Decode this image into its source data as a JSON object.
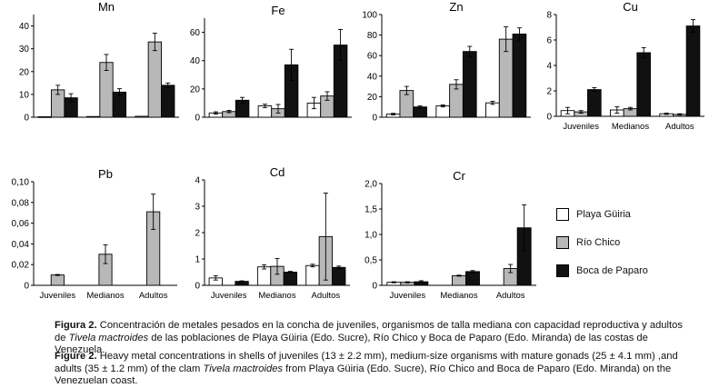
{
  "colors": {
    "playa_guiria": "#ffffff",
    "rio_chico": "#b8b8b8",
    "boca_de_paparo": "#111111"
  },
  "chart_data": [
    {
      "type": "bar",
      "title": "Mn",
      "categories": [
        "Juveniles",
        "Medianos",
        "Adultos"
      ],
      "show_categories": false,
      "ylim": [
        0,
        45
      ],
      "yticks": [
        "0",
        "10",
        "20",
        "30",
        "40"
      ],
      "series": [
        {
          "name": "Playa Güiria",
          "values": [
            0.2,
            0.3,
            0.4
          ],
          "errors": [
            0,
            0,
            0
          ]
        },
        {
          "name": "Río Chico",
          "values": [
            12,
            24,
            33
          ],
          "errors": [
            2.0,
            3.5,
            3.8
          ]
        },
        {
          "name": "Boca de Paparo",
          "values": [
            8.5,
            11,
            14
          ],
          "errors": [
            1.8,
            1.5,
            1.0
          ]
        }
      ]
    },
    {
      "type": "bar",
      "title": "Fe",
      "categories": [
        "Juveniles",
        "Medianos",
        "Adultos"
      ],
      "show_categories": false,
      "ylim": [
        0,
        70
      ],
      "yticks": [
        "0",
        "20",
        "40",
        "60"
      ],
      "series": [
        {
          "name": "Playa Güiria",
          "values": [
            3,
            8,
            10
          ],
          "errors": [
            0.8,
            1.2,
            4.0
          ]
        },
        {
          "name": "Río Chico",
          "values": [
            4,
            6,
            15
          ],
          "errors": [
            0.8,
            3.0,
            3.0
          ]
        },
        {
          "name": "Boca de Paparo",
          "values": [
            12,
            37,
            51
          ],
          "errors": [
            2.0,
            11.0,
            11.0
          ]
        }
      ]
    },
    {
      "type": "bar",
      "title": "Zn",
      "categories": [
        "Juveniles",
        "Medianos",
        "Adultos"
      ],
      "show_categories": false,
      "ylim": [
        0,
        100
      ],
      "yticks": [
        "0",
        "20",
        "40",
        "60",
        "80",
        "100"
      ],
      "series": [
        {
          "name": "Playa Güiria",
          "values": [
            3,
            11,
            14
          ],
          "errors": [
            0.8,
            1.0,
            1.5
          ]
        },
        {
          "name": "Río Chico",
          "values": [
            26,
            32,
            76
          ],
          "errors": [
            4.0,
            4.5,
            12.0
          ]
        },
        {
          "name": "Boca de Paparo",
          "values": [
            10,
            64,
            81
          ],
          "errors": [
            1.0,
            5.0,
            6.0
          ]
        }
      ]
    },
    {
      "type": "bar",
      "title": "Cu",
      "categories": [
        "Juveniles",
        "Medianos",
        "Adultos"
      ],
      "show_categories": true,
      "ylim": [
        0,
        8
      ],
      "yticks": [
        "0",
        "2",
        "4",
        "6",
        "8"
      ],
      "series": [
        {
          "name": "Playa Güiria",
          "values": [
            0.45,
            0.5,
            0.2
          ],
          "errors": [
            0.25,
            0.25,
            0.05
          ]
        },
        {
          "name": "Río Chico",
          "values": [
            0.35,
            0.6,
            0.15
          ],
          "errors": [
            0.1,
            0.1,
            0.05
          ]
        },
        {
          "name": "Boca de Paparo",
          "values": [
            2.1,
            5.0,
            7.1
          ],
          "errors": [
            0.15,
            0.4,
            0.5
          ]
        }
      ]
    },
    {
      "type": "bar",
      "title": "Pb",
      "categories": [
        "Juveniles",
        "Medianos",
        "Adultos"
      ],
      "show_categories": true,
      "ylim": [
        0,
        0.1
      ],
      "yticks": [
        "0",
        "0,02",
        "0,04",
        "0,06",
        "0,08",
        "0,10"
      ],
      "series": [
        {
          "name": "Playa Güiria",
          "values": [
            0,
            0,
            0
          ],
          "errors": [
            0,
            0,
            0
          ]
        },
        {
          "name": "Río Chico",
          "values": [
            0.01,
            0.03,
            0.071
          ],
          "errors": [
            0.0005,
            0.009,
            0.017
          ]
        },
        {
          "name": "Boca de Paparo",
          "values": [
            0,
            0,
            0
          ],
          "errors": [
            0,
            0,
            0
          ]
        }
      ]
    },
    {
      "type": "bar",
      "title": "Cd",
      "categories": [
        "Juveniles",
        "Medianos",
        "Adultos"
      ],
      "show_categories": true,
      "ylim": [
        0,
        4
      ],
      "yticks": [
        "0",
        "1",
        "2",
        "3",
        "4"
      ],
      "series": [
        {
          "name": "Playa Güiria",
          "values": [
            0.28,
            0.7,
            0.75
          ],
          "errors": [
            0.08,
            0.08,
            0.05
          ]
        },
        {
          "name": "Río Chico",
          "values": [
            0,
            0.72,
            1.85
          ],
          "errors": [
            0,
            0.3,
            1.65
          ]
        },
        {
          "name": "Boca de Paparo",
          "values": [
            0.15,
            0.5,
            0.68
          ],
          "errors": [
            0.02,
            0.03,
            0.05
          ]
        }
      ]
    },
    {
      "type": "bar",
      "title": "Cr",
      "categories": [
        "Juveniles",
        "Medianos",
        "Adultos"
      ],
      "show_categories": true,
      "ylim": [
        0,
        2
      ],
      "yticks": [
        "0",
        "0,5",
        "1,0",
        "1,5",
        "2,0"
      ],
      "series": [
        {
          "name": "Playa Güiria",
          "values": [
            0.06,
            0,
            0
          ],
          "errors": [
            0.01,
            0,
            0
          ]
        },
        {
          "name": "Río Chico",
          "values": [
            0.06,
            0.19,
            0.33
          ],
          "errors": [
            0.01,
            0.01,
            0.08
          ]
        },
        {
          "name": "Boca de Paparo",
          "values": [
            0.07,
            0.27,
            1.13
          ],
          "errors": [
            0.02,
            0.02,
            0.45
          ]
        }
      ]
    }
  ],
  "legend": [
    {
      "label": "Playa Güiria",
      "color": "#ffffff"
    },
    {
      "label": "Río Chico",
      "color": "#b8b8b8"
    },
    {
      "label": "Boca de Paparo",
      "color": "#111111"
    }
  ],
  "caption": {
    "es_label": "Figura 2.",
    "es_text": " Concentración de metales pesados en la concha de juveniles, organismos de talla mediana con capacidad reproductiva y adultos de ",
    "es_species": "Tivela mactroides",
    "es_text2": " de las poblaciones de Playa Güiria (Edo. Sucre), Río Chico y Boca de Paparo (Edo. Miranda) de las costas de Venezuela.",
    "en_label": "Figure 2.",
    "en_text": " Heavy metal concentrations in shells of juveniles (13 ± 2.2 mm), medium-size organisms with mature gonads (25 ± 4.1 mm) ,and adults (35 ± 1.2 mm) of the clam ",
    "en_species": "Tivela mactroides",
    "en_text2": " from Playa Güiria (Edo. Sucre), Río Chico and Boca de Paparo (Edo. Miranda) on the Venezuelan coast."
  }
}
